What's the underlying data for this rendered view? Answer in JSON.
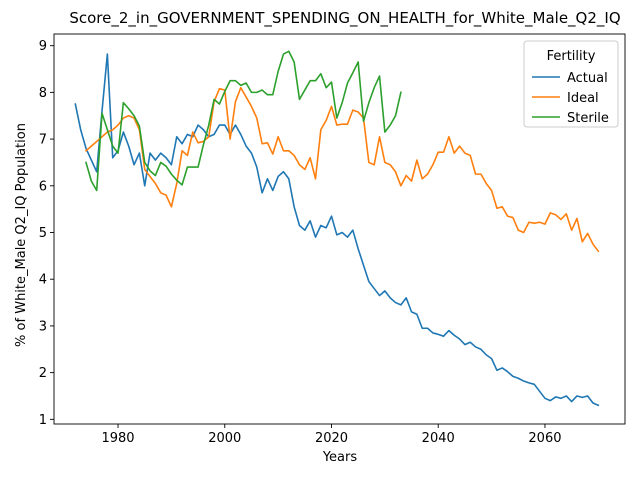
{
  "chart_data": {
    "type": "line",
    "title": "Score_2_in_GOVERNMENT_SPENDING_ON_HEALTH_for_White_Male_Q2_IQ",
    "xlabel": "Years",
    "ylabel": "% of White_Male Q2_IQ Population",
    "xlim": [
      1968,
      2075
    ],
    "ylim": [
      0.9,
      9.25
    ],
    "xticks": [
      1980,
      2000,
      2020,
      2040,
      2060
    ],
    "yticks": [
      1,
      2,
      3,
      4,
      5,
      6,
      7,
      8,
      9
    ],
    "grid": false,
    "legend": {
      "title": "Fertility",
      "placement": "top-right"
    },
    "series": [
      {
        "name": "Actual",
        "color": "#1f77b4",
        "x": [
          1972,
          1973,
          1974,
          1975,
          1976,
          1977,
          1978,
          1979,
          1980,
          1981,
          1982,
          1983,
          1984,
          1985,
          1986,
          1987,
          1988,
          1989,
          1990,
          1991,
          1992,
          1993,
          1994,
          1995,
          1996,
          1997,
          1998,
          1999,
          2000,
          2001,
          2002,
          2003,
          2004,
          2005,
          2006,
          2007,
          2008,
          2009,
          2010,
          2011,
          2012,
          2013,
          2014,
          2015,
          2016,
          2017,
          2018,
          2019,
          2020,
          2021,
          2022,
          2023,
          2024,
          2025,
          2026,
          2027,
          2028,
          2029,
          2030,
          2031,
          2032,
          2033,
          2034,
          2035,
          2036,
          2037,
          2038,
          2039,
          2040,
          2041,
          2042,
          2043,
          2044,
          2045,
          2046,
          2047,
          2048,
          2049,
          2050,
          2051,
          2052,
          2053,
          2054,
          2055,
          2056,
          2057,
          2058,
          2059,
          2060,
          2061,
          2062,
          2063,
          2064,
          2065,
          2066,
          2067,
          2068,
          2069,
          2070
        ],
        "y": [
          7.75,
          7.2,
          6.8,
          6.55,
          6.3,
          7.6,
          8.82,
          6.6,
          6.75,
          7.15,
          6.85,
          6.45,
          6.7,
          6.0,
          6.7,
          6.55,
          6.7,
          6.6,
          6.45,
          7.05,
          6.9,
          7.1,
          7.05,
          7.3,
          7.2,
          7.05,
          7.1,
          7.3,
          7.3,
          7.1,
          7.3,
          7.1,
          6.85,
          6.7,
          6.4,
          5.85,
          6.15,
          5.9,
          6.2,
          6.3,
          6.15,
          5.55,
          5.15,
          5.05,
          5.25,
          4.9,
          5.15,
          5.1,
          5.35,
          4.95,
          5.0,
          4.9,
          5.05,
          4.65,
          4.3,
          3.95,
          3.8,
          3.65,
          3.75,
          3.6,
          3.5,
          3.45,
          3.6,
          3.3,
          3.25,
          2.95,
          2.95,
          2.85,
          2.82,
          2.78,
          2.9,
          2.8,
          2.72,
          2.6,
          2.65,
          2.55,
          2.5,
          2.38,
          2.3,
          2.05,
          2.1,
          2.02,
          1.92,
          1.88,
          1.82,
          1.78,
          1.75,
          1.6,
          1.45,
          1.4,
          1.48,
          1.45,
          1.5,
          1.38,
          1.5,
          1.47,
          1.5,
          1.35,
          1.3
        ]
      },
      {
        "name": "Ideal",
        "color": "#ff7f0e",
        "x": [
          1974,
          1975,
          1976,
          1977,
          1978,
          1979,
          1980,
          1981,
          1982,
          1983,
          1984,
          1985,
          1986,
          1987,
          1988,
          1989,
          1990,
          1991,
          1992,
          1993,
          1994,
          1995,
          1996,
          1997,
          1998,
          1999,
          2000,
          2001,
          2002,
          2003,
          2004,
          2005,
          2006,
          2007,
          2008,
          2009,
          2010,
          2011,
          2012,
          2013,
          2014,
          2015,
          2016,
          2017,
          2018,
          2019,
          2020,
          2021,
          2022,
          2023,
          2024,
          2025,
          2026,
          2027,
          2028,
          2029,
          2030,
          2031,
          2032,
          2033,
          2034,
          2035,
          2036,
          2037,
          2038,
          2039,
          2040,
          2041,
          2042,
          2043,
          2044,
          2045,
          2046,
          2047,
          2048,
          2049,
          2050,
          2051,
          2052,
          2053,
          2054,
          2055,
          2056,
          2057,
          2058,
          2059,
          2060,
          2061,
          2062,
          2063,
          2064,
          2065,
          2066,
          2067,
          2068,
          2069,
          2070
        ],
        "y": [
          6.75,
          6.85,
          6.95,
          7.05,
          7.15,
          7.2,
          7.3,
          7.45,
          7.5,
          7.45,
          7.2,
          6.35,
          6.2,
          6.05,
          5.85,
          5.8,
          5.55,
          6.05,
          6.75,
          6.65,
          7.15,
          6.92,
          6.95,
          7.05,
          7.8,
          8.08,
          8.05,
          7.0,
          7.8,
          8.1,
          7.9,
          7.7,
          7.45,
          6.9,
          6.92,
          6.68,
          7.05,
          6.75,
          6.75,
          6.65,
          6.45,
          6.35,
          6.6,
          6.15,
          7.2,
          7.4,
          7.7,
          7.3,
          7.32,
          7.32,
          7.62,
          7.58,
          7.45,
          6.5,
          6.45,
          7.05,
          6.5,
          6.45,
          6.3,
          6.0,
          6.22,
          6.1,
          6.55,
          6.15,
          6.25,
          6.45,
          6.72,
          6.72,
          7.05,
          6.7,
          6.85,
          6.7,
          6.65,
          6.25,
          6.25,
          6.05,
          5.9,
          5.52,
          5.55,
          5.35,
          5.32,
          5.05,
          5.0,
          5.22,
          5.2,
          5.22,
          5.18,
          5.42,
          5.38,
          5.28,
          5.4,
          5.05,
          5.3,
          4.8,
          4.98,
          4.75,
          4.6
        ]
      },
      {
        "name": "Sterile",
        "color": "#2ca02c",
        "x": [
          1974,
          1975,
          1976,
          1977,
          1978,
          1979,
          1980,
          1981,
          1982,
          1983,
          1984,
          1985,
          1986,
          1987,
          1988,
          1989,
          1990,
          1991,
          1992,
          1993,
          1994,
          1995,
          1996,
          1997,
          1998,
          1999,
          2000,
          2001,
          2002,
          2003,
          2004,
          2005,
          2006,
          2007,
          2008,
          2009,
          2010,
          2011,
          2012,
          2013,
          2014,
          2015,
          2016,
          2017,
          2018,
          2019,
          2020,
          2021,
          2022,
          2023,
          2024,
          2025,
          2026,
          2027,
          2028,
          2029,
          2030,
          2031,
          2032,
          2033
        ],
        "y": [
          6.5,
          6.1,
          5.9,
          7.55,
          7.2,
          6.85,
          6.7,
          7.78,
          7.65,
          7.5,
          7.28,
          6.5,
          6.32,
          6.22,
          6.5,
          6.42,
          6.25,
          6.12,
          6.02,
          6.4,
          6.4,
          6.4,
          6.88,
          7.3,
          7.85,
          7.75,
          8.02,
          8.25,
          8.25,
          8.15,
          8.2,
          8.0,
          8.0,
          8.05,
          7.95,
          7.95,
          8.45,
          8.82,
          8.88,
          8.65,
          7.85,
          8.05,
          8.25,
          8.25,
          8.4,
          8.1,
          8.22,
          7.45,
          7.78,
          8.2,
          8.42,
          8.65,
          7.38,
          7.78,
          8.1,
          8.35,
          7.15,
          7.3,
          7.5,
          8.0
        ]
      }
    ]
  }
}
